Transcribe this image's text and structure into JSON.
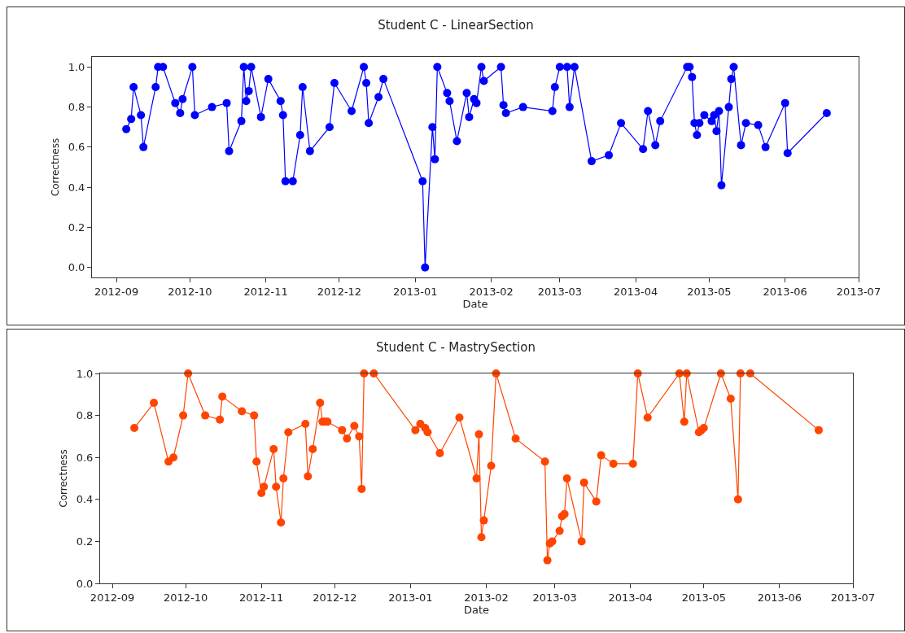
{
  "chart_data": [
    {
      "type": "line",
      "title": "Student C - LinearSection",
      "xlabel": "Date",
      "ylabel": "Correctness",
      "marker": "circle",
      "grid": false,
      "xlim": [
        "2012-08-22",
        "2013-07-01"
      ],
      "ylim": [
        -0.05,
        1.05
      ],
      "xticks": [
        "2012-09",
        "2012-10",
        "2012-11",
        "2012-12",
        "2013-01",
        "2013-02",
        "2013-03",
        "2013-04",
        "2013-05",
        "2013-06",
        "2013-07"
      ],
      "yticks": [
        {
          "value": 0,
          "label": "0.0"
        },
        {
          "value": 0.2,
          "label": "0.2"
        },
        {
          "value": 0.4,
          "label": "0.4"
        },
        {
          "value": 0.6,
          "label": "0.6"
        },
        {
          "value": 0.8,
          "label": "0.8"
        },
        {
          "value": 1,
          "label": "1.0"
        }
      ],
      "series": [
        {
          "color": "#0000ff",
          "x": [
            "2012-09-05",
            "2012-09-07",
            "2012-09-08",
            "2012-09-11",
            "2012-09-12",
            "2012-09-17",
            "2012-09-18",
            "2012-09-20",
            "2012-09-25",
            "2012-09-27",
            "2012-09-28",
            "2012-10-02",
            "2012-10-03",
            "2012-10-10",
            "2012-10-16",
            "2012-10-17",
            "2012-10-22",
            "2012-10-23",
            "2012-10-24",
            "2012-10-25",
            "2012-10-26",
            "2012-10-30",
            "2012-11-02",
            "2012-11-07",
            "2012-11-08",
            "2012-11-09",
            "2012-11-12",
            "2012-11-15",
            "2012-11-16",
            "2012-11-19",
            "2012-11-27",
            "2012-11-29",
            "2012-12-06",
            "2012-12-11",
            "2012-12-12",
            "2012-12-13",
            "2012-12-17",
            "2012-12-19",
            "2013-01-04",
            "2013-01-05",
            "2013-01-08",
            "2013-01-09",
            "2013-01-10",
            "2013-01-14",
            "2013-01-15",
            "2013-01-18",
            "2013-01-22",
            "2013-01-23",
            "2013-01-25",
            "2013-01-26",
            "2013-01-28",
            "2013-01-29",
            "2013-02-05",
            "2013-02-06",
            "2013-02-07",
            "2013-02-14",
            "2013-02-26",
            "2013-02-27",
            "2013-03-01",
            "2013-03-04",
            "2013-03-05",
            "2013-03-07",
            "2013-03-14",
            "2013-03-21",
            "2013-03-26",
            "2013-04-04",
            "2013-04-06",
            "2013-04-09",
            "2013-04-11",
            "2013-04-22",
            "2013-04-23",
            "2013-04-24",
            "2013-04-25",
            "2013-04-26",
            "2013-04-27",
            "2013-04-29",
            "2013-05-02",
            "2013-05-03",
            "2013-05-04",
            "2013-05-05",
            "2013-05-06",
            "2013-05-09",
            "2013-05-10",
            "2013-05-11",
            "2013-05-14",
            "2013-05-16",
            "2013-05-21",
            "2013-05-24",
            "2013-06-01",
            "2013-06-02",
            "2013-06-18"
          ],
          "values": [
            0.69,
            0.74,
            0.9,
            0.76,
            0.6,
            0.9,
            1.0,
            1.0,
            0.82,
            0.77,
            0.84,
            1.0,
            0.76,
            0.8,
            0.82,
            0.58,
            0.73,
            1.0,
            0.83,
            0.88,
            1.0,
            0.75,
            0.94,
            0.83,
            0.76,
            0.43,
            0.43,
            0.66,
            0.9,
            0.58,
            0.7,
            0.92,
            0.78,
            1.0,
            0.92,
            0.72,
            0.85,
            0.94,
            0.43,
            0.0,
            0.7,
            0.54,
            1.0,
            0.87,
            0.83,
            0.63,
            0.87,
            0.75,
            0.84,
            0.82,
            1.0,
            0.93,
            1.0,
            0.81,
            0.77,
            0.8,
            0.78,
            0.9,
            1.0,
            1.0,
            0.8,
            1.0,
            0.53,
            0.56,
            0.72,
            0.59,
            0.78,
            0.61,
            0.73,
            1.0,
            1.0,
            0.95,
            0.72,
            0.66,
            0.72,
            0.76,
            0.73,
            0.76,
            0.68,
            0.78,
            0.41,
            0.8,
            0.94,
            1.0,
            0.61,
            0.72,
            0.71,
            0.6,
            0.82,
            0.57,
            0.77
          ]
        }
      ]
    },
    {
      "type": "line",
      "title": "Student C - MastrySection",
      "xlabel": "Date",
      "ylabel": "Correctness",
      "marker": "circle",
      "grid": false,
      "xlim": [
        "2012-08-27",
        "2013-07-01"
      ],
      "ylim": [
        0,
        1
      ],
      "xticks": [
        "2012-09",
        "2012-10",
        "2012-11",
        "2012-12",
        "2013-01",
        "2013-02",
        "2013-03",
        "2013-04",
        "2013-05",
        "2013-06",
        "2013-07"
      ],
      "yticks": [
        {
          "value": 0,
          "label": "0.0"
        },
        {
          "value": 0.2,
          "label": "0.2"
        },
        {
          "value": 0.4,
          "label": "0.4"
        },
        {
          "value": 0.6,
          "label": "0.6"
        },
        {
          "value": 0.8,
          "label": "0.8"
        },
        {
          "value": 1,
          "label": "1.0"
        }
      ],
      "series": [
        {
          "color": "#ff4500",
          "x": [
            "2012-09-10",
            "2012-09-18",
            "2012-09-24",
            "2012-09-26",
            "2012-09-30",
            "2012-10-02",
            "2012-10-09",
            "2012-10-15",
            "2012-10-16",
            "2012-10-24",
            "2012-10-29",
            "2012-10-30",
            "2012-11-01",
            "2012-11-02",
            "2012-11-06",
            "2012-11-07",
            "2012-11-09",
            "2012-11-10",
            "2012-11-12",
            "2012-11-19",
            "2012-11-20",
            "2012-11-22",
            "2012-11-25",
            "2012-11-26",
            "2012-11-27",
            "2012-11-28",
            "2012-12-04",
            "2012-12-06",
            "2012-12-09",
            "2012-12-11",
            "2012-12-12",
            "2012-12-13",
            "2012-12-17",
            "2013-01-03",
            "2013-01-05",
            "2013-01-07",
            "2013-01-08",
            "2013-01-13",
            "2013-01-21",
            "2013-01-28",
            "2013-01-29",
            "2013-01-30",
            "2013-01-31",
            "2013-02-03",
            "2013-02-05",
            "2013-02-13",
            "2013-02-25",
            "2013-02-26",
            "2013-02-27",
            "2013-02-28",
            "2013-03-03",
            "2013-03-04",
            "2013-03-05",
            "2013-03-06",
            "2013-03-12",
            "2013-03-13",
            "2013-03-18",
            "2013-03-20",
            "2013-03-25",
            "2013-04-02",
            "2013-04-04",
            "2013-04-08",
            "2013-04-21",
            "2013-04-23",
            "2013-04-24",
            "2013-04-29",
            "2013-04-30",
            "2013-05-01",
            "2013-05-08",
            "2013-05-12",
            "2013-05-15",
            "2013-05-16",
            "2013-05-20",
            "2013-06-17"
          ],
          "values": [
            0.74,
            0.86,
            0.58,
            0.6,
            0.8,
            1.0,
            0.8,
            0.78,
            0.89,
            0.82,
            0.8,
            0.58,
            0.43,
            0.46,
            0.64,
            0.46,
            0.29,
            0.5,
            0.72,
            0.76,
            0.51,
            0.64,
            0.86,
            0.77,
            0.77,
            0.77,
            0.73,
            0.69,
            0.75,
            0.7,
            0.45,
            1.0,
            1.0,
            0.73,
            0.76,
            0.74,
            0.72,
            0.62,
            0.79,
            0.5,
            0.71,
            0.22,
            0.3,
            0.56,
            1.0,
            0.69,
            0.58,
            0.11,
            0.19,
            0.2,
            0.25,
            0.32,
            0.33,
            0.5,
            0.2,
            0.48,
            0.39,
            0.61,
            0.57,
            0.57,
            1.0,
            0.79,
            1.0,
            0.77,
            1.0,
            0.72,
            0.73,
            0.74,
            1.0,
            0.88,
            0.4,
            1.0,
            1.0,
            0.73
          ]
        }
      ]
    }
  ]
}
